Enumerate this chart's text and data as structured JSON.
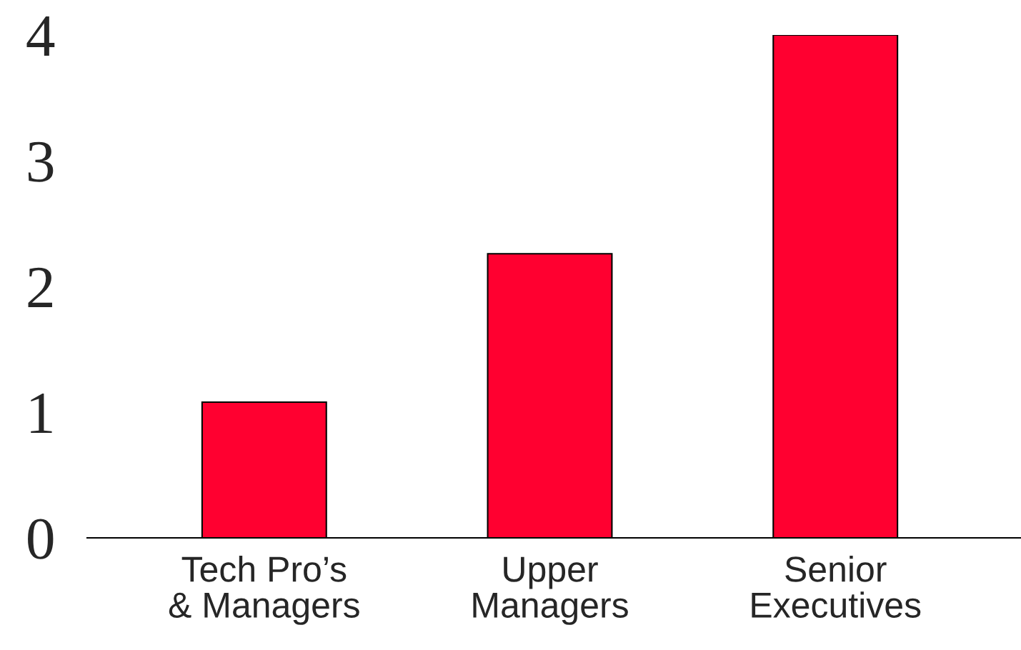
{
  "chart_data": {
    "type": "bar",
    "categories": [
      "Tech Pro’s\n& Managers",
      "Upper\nManagers",
      "Senior\nExecutives"
    ],
    "values": [
      1.08,
      2.26,
      4.0
    ],
    "color": "#ff0030",
    "ylim": [
      0,
      4
    ],
    "yticks": [
      0,
      1,
      2,
      3,
      4
    ],
    "grid": false,
    "legend": false
  }
}
